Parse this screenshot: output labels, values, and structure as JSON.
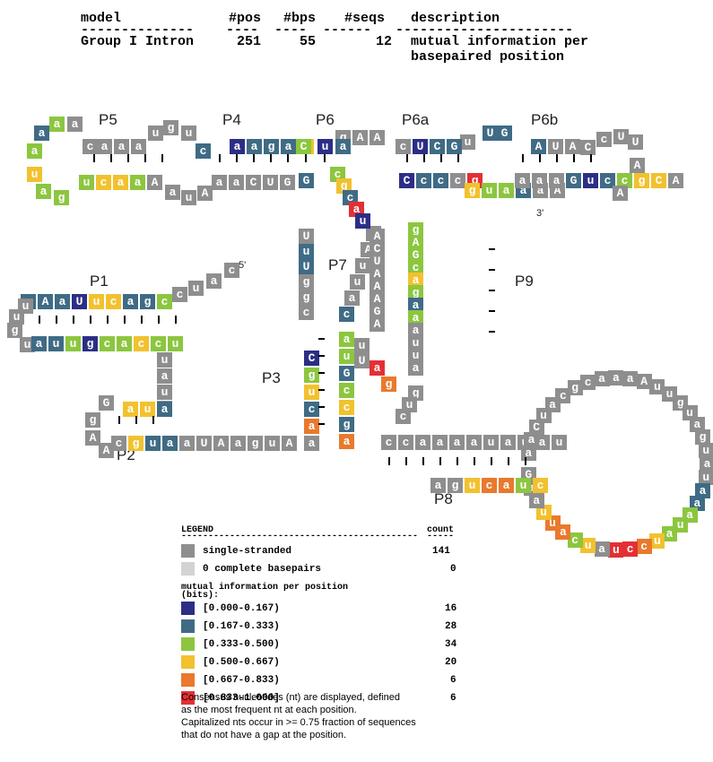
{
  "header": {
    "columns": [
      "model",
      "#pos",
      "#bps",
      "#seqs",
      "description"
    ],
    "values": {
      "model": "Group I Intron",
      "pos": "251",
      "bps": "55",
      "seqs": "12"
    },
    "description_lines": [
      "mutual information per",
      "basepaired position"
    ]
  },
  "helix_labels": {
    "P1": "P1",
    "P2": "P2",
    "P3": "P3",
    "P4": "P4",
    "P5": "P5",
    "P6": "P6",
    "P6a": "P6a",
    "P6b": "P6b",
    "P7": "P7",
    "P8": "P8",
    "P9": "P9"
  },
  "ends": {
    "five_prime": "5'",
    "three_prime": "3'"
  },
  "colors": {
    "single": "#8e8e8e",
    "complete": "#d3d3d3",
    "b0": "#2c2e86",
    "b1": "#3f6b85",
    "b2": "#8cc63f",
    "b3": "#f2c12e",
    "b4": "#e9792d",
    "b5": "#e33035"
  },
  "legend": {
    "title": "LEGEND",
    "count_header": "count",
    "rows": [
      {
        "label": "single-stranded",
        "count": "141",
        "color": "single"
      },
      {
        "label": "0 complete basepairs",
        "count": "0",
        "color": "complete"
      }
    ],
    "mi_title_lines": [
      "mutual information per position",
      "(bits):"
    ],
    "bins": [
      {
        "label": "[0.000-0.167)",
        "count": "16",
        "color": "b0"
      },
      {
        "label": "[0.167-0.333)",
        "count": "28",
        "color": "b1"
      },
      {
        "label": "[0.333-0.500)",
        "count": "34",
        "color": "b2"
      },
      {
        "label": "[0.500-0.667)",
        "count": "20",
        "color": "b3"
      },
      {
        "label": "[0.667-0.833)",
        "count": "6",
        "color": "b4"
      },
      {
        "label": "[0.833-1.000]",
        "count": "6",
        "color": "b5"
      }
    ]
  },
  "notes": [
    "Consensus nucleotides (nt) are displayed, defined",
    "as the most frequent nt at each position.",
    "Capitalized nts occur in >= 0.75 fraction of sequences",
    "that do not have a gap at the position."
  ],
  "nucleotides": [
    {
      "n": "c",
      "c": "single"
    },
    {
      "n": "a",
      "c": "single"
    },
    {
      "n": "u",
      "c": "single"
    },
    {
      "n": "c",
      "c": "single"
    },
    {
      "n": "c",
      "c": "b2"
    },
    {
      "n": "g",
      "c": "b1"
    },
    {
      "n": "a",
      "c": "b1"
    },
    {
      "n": "c",
      "c": "b3"
    },
    {
      "n": "u",
      "c": "b3"
    },
    {
      "n": "U",
      "c": "b0"
    },
    {
      "n": "a",
      "c": "b1"
    },
    {
      "n": "A",
      "c": "b1"
    },
    {
      "n": "u",
      "c": "b1"
    },
    {
      "n": "u",
      "c": "single"
    },
    {
      "n": "u",
      "c": "single"
    },
    {
      "n": "g",
      "c": "single"
    },
    {
      "n": "u",
      "c": "single"
    },
    {
      "n": "a",
      "c": "b1"
    },
    {
      "n": "u",
      "c": "b1"
    },
    {
      "n": "u",
      "c": "b2"
    },
    {
      "n": "g",
      "c": "b0"
    },
    {
      "n": "c",
      "c": "b2"
    },
    {
      "n": "a",
      "c": "b2"
    },
    {
      "n": "c",
      "c": "b3"
    },
    {
      "n": "c",
      "c": "b2"
    },
    {
      "n": "u",
      "c": "b2"
    },
    {
      "n": "u",
      "c": "single"
    },
    {
      "n": "a",
      "c": "single"
    },
    {
      "n": "u",
      "c": "single"
    },
    {
      "n": "u",
      "c": "single"
    },
    {
      "n": "a",
      "c": "b1"
    },
    {
      "n": "u",
      "c": "b3"
    },
    {
      "n": "a",
      "c": "b3"
    },
    {
      "n": "G",
      "c": "single"
    },
    {
      "n": "g",
      "c": "single"
    },
    {
      "n": "A",
      "c": "single"
    },
    {
      "n": "A",
      "c": "single"
    },
    {
      "n": "c",
      "c": "single"
    },
    {
      "n": "g",
      "c": "b3"
    },
    {
      "n": "u",
      "c": "b1"
    },
    {
      "n": "a",
      "c": "b1"
    },
    {
      "n": "a",
      "c": "single"
    },
    {
      "n": "U",
      "c": "single"
    },
    {
      "n": "A",
      "c": "single"
    },
    {
      "n": "a",
      "c": "single"
    },
    {
      "n": "g",
      "c": "single"
    },
    {
      "n": "u",
      "c": "single"
    },
    {
      "n": "A",
      "c": "single"
    },
    {
      "n": "a",
      "c": "single"
    },
    {
      "n": "a",
      "c": "b4"
    },
    {
      "n": "c",
      "c": "b1"
    },
    {
      "n": "u",
      "c": "b3"
    },
    {
      "n": "g",
      "c": "b2"
    },
    {
      "n": "C",
      "c": "b0"
    },
    {
      "n": "a",
      "c": "b2"
    },
    {
      "n": "u",
      "c": "b2"
    },
    {
      "n": "G",
      "c": "b1"
    },
    {
      "n": "c",
      "c": "b2"
    },
    {
      "n": "c",
      "c": "b3"
    },
    {
      "n": "g",
      "c": "b1"
    },
    {
      "n": "a",
      "c": "b4"
    },
    {
      "n": "c",
      "c": "b1"
    },
    {
      "n": "a",
      "c": "single"
    },
    {
      "n": "u",
      "c": "single"
    },
    {
      "n": "u",
      "c": "single"
    },
    {
      "n": "A",
      "c": "single"
    },
    {
      "n": "A",
      "c": "single"
    },
    {
      "n": "U",
      "c": "single"
    },
    {
      "n": "u",
      "c": "b1"
    },
    {
      "n": "U",
      "c": "b1"
    },
    {
      "n": "g",
      "c": "single"
    },
    {
      "n": "g",
      "c": "single"
    },
    {
      "n": "c",
      "c": "single"
    },
    {
      "n": "G",
      "c": "b1"
    },
    {
      "n": "g",
      "c": "b3"
    },
    {
      "n": "c",
      "c": "b2"
    },
    {
      "n": "g",
      "c": "b3"
    },
    {
      "n": "c",
      "c": "b1"
    },
    {
      "n": "a",
      "c": "b5"
    },
    {
      "n": "u",
      "c": "b0"
    },
    {
      "n": "C",
      "c": "b0"
    },
    {
      "n": "c",
      "c": "b1"
    },
    {
      "n": "c",
      "c": "b1"
    },
    {
      "n": "c",
      "c": "single"
    },
    {
      "n": "g",
      "c": "b5"
    },
    {
      "n": "g",
      "c": "b3"
    },
    {
      "n": "u",
      "c": "b2"
    },
    {
      "n": "a",
      "c": "b2"
    },
    {
      "n": "a",
      "c": "b1"
    },
    {
      "n": "a",
      "c": "single"
    },
    {
      "n": "A",
      "c": "single"
    },
    {
      "n": "a",
      "c": "single"
    },
    {
      "n": "a",
      "c": "single"
    },
    {
      "n": "a",
      "c": "single"
    },
    {
      "n": "G",
      "c": "b1"
    },
    {
      "n": "u",
      "c": "b0"
    },
    {
      "n": "c",
      "c": "b1"
    },
    {
      "n": "c",
      "c": "b2"
    },
    {
      "n": "g",
      "c": "b3"
    },
    {
      "n": "C",
      "c": "b3"
    },
    {
      "n": "A",
      "c": "single"
    },
    {
      "n": "A",
      "c": "single"
    },
    {
      "n": "A",
      "c": "single"
    },
    {
      "n": "U",
      "c": "single"
    },
    {
      "n": "U",
      "c": "single"
    },
    {
      "n": "c",
      "c": "single"
    },
    {
      "n": "C",
      "c": "single"
    },
    {
      "n": "A",
      "c": "single"
    },
    {
      "n": "U",
      "c": "single"
    },
    {
      "n": "A",
      "c": "b1"
    },
    {
      "n": "G",
      "c": "b1"
    },
    {
      "n": "U",
      "c": "b1"
    },
    {
      "n": "u",
      "c": "single"
    },
    {
      "n": "G",
      "c": "b1"
    },
    {
      "n": "C",
      "c": "b1"
    },
    {
      "n": "U",
      "c": "b0"
    },
    {
      "n": "c",
      "c": "single"
    },
    {
      "n": "A",
      "c": "single"
    },
    {
      "n": "A",
      "c": "single"
    },
    {
      "n": "g",
      "c": "single"
    },
    {
      "n": "a",
      "c": "b1"
    },
    {
      "n": "u",
      "c": "b0"
    },
    {
      "n": "C",
      "c": "b2"
    },
    {
      "n": "a",
      "c": "b1"
    },
    {
      "n": "g",
      "c": "b1"
    },
    {
      "n": "a",
      "c": "b1"
    },
    {
      "n": "a",
      "c": "b0"
    },
    {
      "n": "c",
      "c": "b1"
    },
    {
      "n": "u",
      "c": "single"
    },
    {
      "n": "g",
      "c": "single"
    },
    {
      "n": "u",
      "c": "single"
    },
    {
      "n": "a",
      "c": "single"
    },
    {
      "n": "a",
      "c": "single"
    },
    {
      "n": "a",
      "c": "single"
    },
    {
      "n": "c",
      "c": "single"
    },
    {
      "n": "a",
      "c": "single"
    },
    {
      "n": "a",
      "c": "b2"
    },
    {
      "n": "a",
      "c": "b1"
    },
    {
      "n": "a",
      "c": "b2"
    },
    {
      "n": "u",
      "c": "b3"
    },
    {
      "n": "a",
      "c": "b2"
    },
    {
      "n": "g",
      "c": "b2"
    },
    {
      "n": "u",
      "c": "b2"
    },
    {
      "n": "c",
      "c": "b3"
    },
    {
      "n": "a",
      "c": "b3"
    },
    {
      "n": "a",
      "c": "b2"
    },
    {
      "n": "A",
      "c": "single"
    },
    {
      "n": "a",
      "c": "single"
    },
    {
      "n": "u",
      "c": "single"
    },
    {
      "n": "A",
      "c": "single"
    },
    {
      "n": "a",
      "c": "single"
    },
    {
      "n": "a",
      "c": "single"
    },
    {
      "n": "C",
      "c": "single"
    },
    {
      "n": "U",
      "c": "single"
    },
    {
      "n": "G",
      "c": "single"
    },
    {
      "n": "A",
      "c": "single"
    },
    {
      "n": "C",
      "c": "single"
    },
    {
      "n": "U",
      "c": "single"
    },
    {
      "n": "A",
      "c": "single"
    },
    {
      "n": "A",
      "c": "single"
    },
    {
      "n": "A",
      "c": "single"
    },
    {
      "n": "G",
      "c": "single"
    },
    {
      "n": "A",
      "c": "single"
    },
    {
      "n": "u",
      "c": "single"
    },
    {
      "n": "U",
      "c": "single"
    },
    {
      "n": "a",
      "c": "b5"
    },
    {
      "n": "g",
      "c": "b4"
    },
    {
      "n": "g",
      "c": "b2"
    },
    {
      "n": "A",
      "c": "b2"
    },
    {
      "n": "G",
      "c": "b2"
    },
    {
      "n": "c",
      "c": "b2"
    },
    {
      "n": "a",
      "c": "b3"
    },
    {
      "n": "g",
      "c": "b2"
    },
    {
      "n": "a",
      "c": "b1"
    },
    {
      "n": "a",
      "c": "b2"
    },
    {
      "n": "a",
      "c": "single"
    },
    {
      "n": "u",
      "c": "single"
    },
    {
      "n": "u",
      "c": "single"
    },
    {
      "n": "a",
      "c": "single"
    },
    {
      "n": "g",
      "c": "single"
    },
    {
      "n": "u",
      "c": "single"
    },
    {
      "n": "c",
      "c": "single"
    },
    {
      "n": "c",
      "c": "single"
    },
    {
      "n": "c",
      "c": "single"
    },
    {
      "n": "a",
      "c": "single"
    },
    {
      "n": "a",
      "c": "single"
    },
    {
      "n": "a",
      "c": "single"
    },
    {
      "n": "a",
      "c": "single"
    },
    {
      "n": "u",
      "c": "single"
    },
    {
      "n": "a",
      "c": "single"
    },
    {
      "n": "u",
      "c": "single"
    },
    {
      "n": "a",
      "c": "single"
    },
    {
      "n": "u",
      "c": "single"
    },
    {
      "n": "a",
      "c": "single"
    },
    {
      "n": "a",
      "c": "single"
    },
    {
      "n": "C",
      "c": "single"
    },
    {
      "n": "u",
      "c": "single"
    },
    {
      "n": "a",
      "c": "single"
    },
    {
      "n": "c",
      "c": "single"
    },
    {
      "n": "g",
      "c": "single"
    },
    {
      "n": "c",
      "c": "single"
    },
    {
      "n": "a",
      "c": "single"
    },
    {
      "n": "a",
      "c": "single"
    },
    {
      "n": "a",
      "c": "single"
    },
    {
      "n": "A",
      "c": "single"
    },
    {
      "n": "u",
      "c": "single"
    },
    {
      "n": "u",
      "c": "single"
    },
    {
      "n": "g",
      "c": "single"
    },
    {
      "n": "u",
      "c": "single"
    },
    {
      "n": "a",
      "c": "single"
    },
    {
      "n": "g",
      "c": "single"
    },
    {
      "n": "u",
      "c": "single"
    },
    {
      "n": "a",
      "c": "single"
    },
    {
      "n": "u",
      "c": "single"
    },
    {
      "n": "a",
      "c": "b1"
    },
    {
      "n": "a",
      "c": "b1"
    },
    {
      "n": "a",
      "c": "b2"
    },
    {
      "n": "u",
      "c": "b2"
    },
    {
      "n": "a",
      "c": "b2"
    },
    {
      "n": "u",
      "c": "b3"
    },
    {
      "n": "c",
      "c": "b4"
    },
    {
      "n": "c",
      "c": "b5"
    },
    {
      "n": "u",
      "c": "b5"
    },
    {
      "n": "a",
      "c": "single"
    },
    {
      "n": "u",
      "c": "b3"
    },
    {
      "n": "c",
      "c": "b2"
    },
    {
      "n": "a",
      "c": "b4"
    },
    {
      "n": "u",
      "c": "b4"
    },
    {
      "n": "u",
      "c": "b3"
    },
    {
      "n": "a",
      "c": "single"
    },
    {
      "n": "a",
      "c": "single"
    },
    {
      "n": "G",
      "c": "single"
    },
    {
      "n": "c",
      "c": "b3"
    },
    {
      "n": "u",
      "c": "b2"
    },
    {
      "n": "a",
      "c": "b4"
    },
    {
      "n": "c",
      "c": "b4"
    },
    {
      "n": "u",
      "c": "b3"
    },
    {
      "n": "g",
      "c": "single"
    },
    {
      "n": "a",
      "c": "single"
    }
  ]
}
